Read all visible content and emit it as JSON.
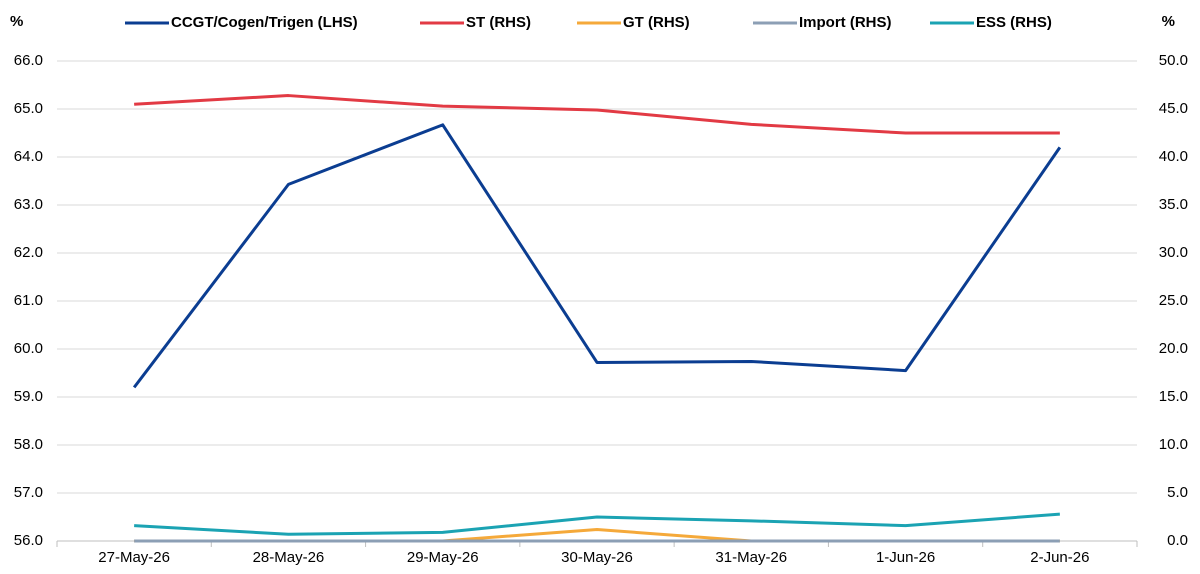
{
  "chart_data": {
    "type": "line",
    "y_unit": "%",
    "y2_unit": "%",
    "categories": [
      "27-May-26",
      "28-May-26",
      "29-May-26",
      "30-May-26",
      "31-May-26",
      "1-Jun-26",
      "2-Jun-26"
    ],
    "series": [
      {
        "name": "CCGT/Cogen/Trigen (LHS)",
        "color": "#0b3d91",
        "values": [
          59.2,
          63.43,
          64.67,
          59.72,
          59.74,
          59.55,
          64.2
        ]
      },
      {
        "name": "ST (RHS)",
        "color": "#e23a44",
        "axis": "y2",
        "values": [
          45.5,
          46.4,
          45.3,
          44.9,
          43.4,
          42.5,
          42.5
        ]
      },
      {
        "name": "GT (RHS)",
        "color": "#f5a93a",
        "axis": "y2",
        "values": [
          0,
          0,
          0,
          1.2,
          0,
          0,
          0
        ]
      },
      {
        "name": "Import (RHS)",
        "color": "#8c9fb5",
        "axis": "y2",
        "values": [
          0,
          0,
          0,
          0,
          0,
          0,
          0
        ]
      },
      {
        "name": "ESS (RHS)",
        "color": "#1ba3b3",
        "axis": "y2",
        "values": [
          1.6,
          0.7,
          0.9,
          2.5,
          2.1,
          1.6,
          2.8
        ]
      }
    ],
    "ylim": [
      56,
      66
    ],
    "yticks": [
      {
        "value": 56,
        "label": "56.0"
      },
      {
        "value": 57,
        "label": "57.0"
      },
      {
        "value": 58,
        "label": "58.0"
      },
      {
        "value": 59,
        "label": "59.0"
      },
      {
        "value": 60,
        "label": "60.0"
      },
      {
        "value": 61,
        "label": "61.0"
      },
      {
        "value": 62,
        "label": "62.0"
      },
      {
        "value": 63,
        "label": "63.0"
      },
      {
        "value": 64,
        "label": "64.0"
      },
      {
        "value": 65,
        "label": "65.0"
      },
      {
        "value": 66,
        "label": "66.0"
      }
    ],
    "y2lim": [
      0,
      50
    ],
    "y2ticks": [
      {
        "value": 0,
        "label": "0.0"
      },
      {
        "value": 5,
        "label": "5.0"
      },
      {
        "value": 10,
        "label": "10.0"
      },
      {
        "value": 15,
        "label": "15.0"
      },
      {
        "value": 20,
        "label": "20.0"
      },
      {
        "value": 25,
        "label": "25.0"
      },
      {
        "value": 30,
        "label": "30.0"
      },
      {
        "value": 35,
        "label": "35.0"
      },
      {
        "value": 40,
        "label": "40.0"
      },
      {
        "value": 45,
        "label": "45.0"
      },
      {
        "value": 50,
        "label": "50.0"
      }
    ],
    "grid": true,
    "legend": "top"
  }
}
